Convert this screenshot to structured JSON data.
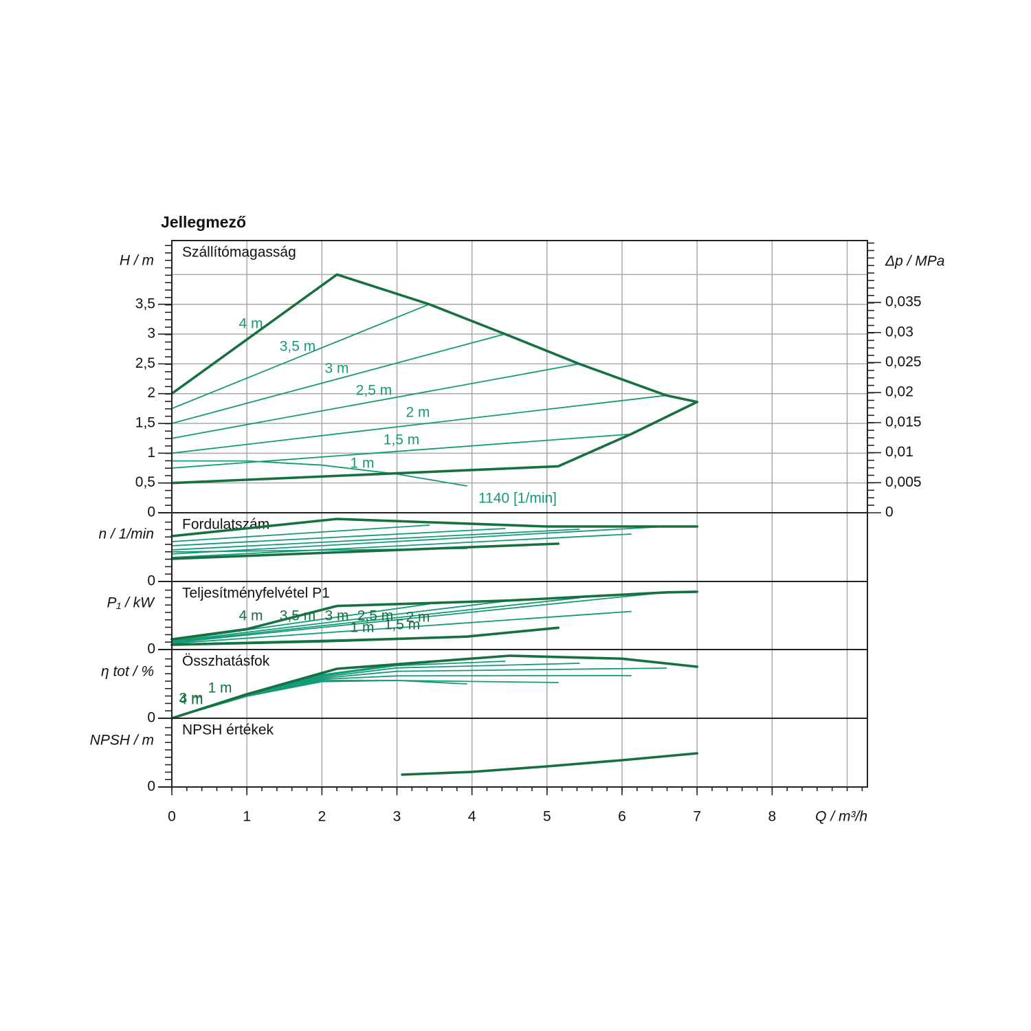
{
  "chart_data": {
    "type": "line",
    "title": "Jellegmező",
    "xlabel": "Q / m³/h",
    "xlim": [
      0,
      9.27
    ],
    "xticks": [
      0,
      1,
      2,
      3,
      4,
      5,
      6,
      7,
      8
    ],
    "xgrid": [
      0,
      1,
      2,
      3,
      4,
      5,
      6,
      7,
      8,
      9
    ],
    "panels": [
      {
        "title": "Szállítómagasság",
        "ylabel": "H / m",
        "ylim": [
          0,
          4.57
        ],
        "yticks": [
          0,
          {
            "value": 0.5,
            "label": "0,5"
          },
          1,
          {
            "value": 1.5,
            "label": "1,5"
          },
          2,
          {
            "value": 2.5,
            "label": "2,5"
          },
          3,
          {
            "value": 3.5,
            "label": "3,5"
          }
        ],
        "grid": [
          0.5,
          1,
          1.5,
          2,
          2.5,
          3,
          3.5,
          4
        ],
        "y2label": "Δp / MPa",
        "y2lim": [
          0,
          0.0453
        ],
        "y2ticks": [
          0,
          {
            "value": 0.005,
            "label": "0,005"
          },
          {
            "value": 0.01,
            "label": "0,01"
          },
          {
            "value": 0.015,
            "label": "0,015"
          },
          {
            "value": 0.02,
            "label": "0,02"
          },
          {
            "value": 0.025,
            "label": "0,025"
          },
          {
            "value": 0.03,
            "label": "0,03"
          },
          {
            "value": 0.035,
            "label": "0,035"
          }
        ],
        "envelope": [
          {
            "color": "#17703f",
            "x": [
              0,
              2.2,
              3.43,
              4.44,
              5.43,
              6.59,
              7.0
            ],
            "values": [
              2.0,
              4.0,
              3.5,
              3.0,
              2.5,
              1.97,
              1.86
            ]
          },
          {
            "color": "#17703f",
            "x": [
              0,
              5.15,
              6.12,
              7.0
            ],
            "values": [
              0.5,
              0.78,
              1.32,
              1.86
            ]
          }
        ],
        "series": [
          {
            "color": "#139b78",
            "x": [
              0,
              3.43
            ],
            "values": [
              1.75,
              3.5
            ]
          },
          {
            "color": "#139b78",
            "x": [
              0,
              4.44
            ],
            "values": [
              1.5,
              3.0
            ]
          },
          {
            "color": "#139b78",
            "x": [
              0,
              5.43
            ],
            "values": [
              1.25,
              2.5
            ]
          },
          {
            "color": "#139b78",
            "x": [
              0,
              6.59
            ],
            "values": [
              1.0,
              1.97
            ]
          },
          {
            "color": "#139b78",
            "x": [
              0,
              6.12
            ],
            "values": [
              0.75,
              1.32
            ]
          },
          {
            "color": "#139b78",
            "x": [
              0,
              1,
              2,
              3,
              3.93
            ],
            "values": [
              0.87,
              0.87,
              0.8,
              0.65,
              0.45
            ]
          }
        ],
        "annotations": [
          "4 m",
          "3,5 m",
          "3 m",
          "2,5 m",
          "2 m",
          "1,5 m",
          "1 m",
          "1140 [1/min]"
        ]
      },
      {
        "title": "Fordulatszám",
        "ylabel": "n / 1/min",
        "ylim": [
          0,
          3000
        ],
        "yticks": [
          0
        ],
        "envelope": [
          {
            "color": "#17703f",
            "x": [
              0,
              2.2,
              5,
              7
            ],
            "values": [
              1980,
              2730,
              2400,
              2400
            ]
          },
          {
            "color": "#17703f",
            "x": [
              0,
              5.15
            ],
            "values": [
              990,
              1650
            ]
          }
        ],
        "series": [
          {
            "color": "#139b78",
            "x": [
              0,
              3.43
            ],
            "values": [
              1740,
              2460
            ]
          },
          {
            "color": "#139b78",
            "x": [
              0,
              4.44
            ],
            "values": [
              1560,
              2310
            ]
          },
          {
            "color": "#139b78",
            "x": [
              0,
              5.43
            ],
            "values": [
              1380,
              2280
            ]
          },
          {
            "color": "#139b78",
            "x": [
              0,
              6.59
            ],
            "values": [
              1200,
              2400
            ]
          },
          {
            "color": "#139b78",
            "x": [
              0,
              6.12
            ],
            "values": [
              1050,
              2070
            ]
          },
          {
            "color": "#139b78",
            "x": [
              0,
              3.93
            ],
            "values": [
              1290,
              1440
            ]
          }
        ],
        "annotations": []
      },
      {
        "title": "Teljesítményfelvétel P1",
        "ylabel": "P₁ / kW",
        "ylim": [
          0,
          0.1
        ],
        "yticks": [
          0
        ],
        "envelope": [
          {
            "color": "#17703f",
            "x": [
              0,
              1,
              2.2,
              4.5,
              6.6,
              7
            ],
            "values": [
              0.015,
              0.03,
              0.064,
              0.072,
              0.084,
              0.085
            ]
          },
          {
            "color": "#17703f",
            "x": [
              0,
              2,
              3.93,
              5.15
            ],
            "values": [
              0.007,
              0.012,
              0.019,
              0.032
            ]
          }
        ],
        "series": [
          {
            "color": "#139b78",
            "x": [
              0,
              3.43
            ],
            "values": [
              0.013,
              0.067
            ]
          },
          {
            "color": "#139b78",
            "x": [
              0,
              4.44
            ],
            "values": [
              0.012,
              0.071
            ]
          },
          {
            "color": "#139b78",
            "x": [
              0,
              5.43
            ],
            "values": [
              0.011,
              0.076
            ]
          },
          {
            "color": "#139b78",
            "x": [
              0,
              6.59
            ],
            "values": [
              0.01,
              0.084
            ]
          },
          {
            "color": "#139b78",
            "x": [
              0,
              6.12
            ],
            "values": [
              0.009,
              0.056
            ]
          },
          {
            "color": "#139b78",
            "x": [
              0,
              3.93
            ],
            "values": [
              0.008,
              0.019
            ]
          }
        ],
        "annotations": [
          "4 m",
          "3,5 m",
          "3 m",
          "2,5 m",
          "2 m",
          "1 m",
          "1,5 m"
        ]
      },
      {
        "title": "Összhatásfok",
        "ylabel": "η tot / %",
        "ylim": [
          0,
          30
        ],
        "yticks": [
          0
        ],
        "envelope": [
          {
            "color": "#17703f",
            "x": [
              0,
              1,
              2.2,
              4.5,
              6,
              7
            ],
            "values": [
              0,
              10.5,
              21.6,
              27.3,
              26,
              22.5
            ]
          }
        ],
        "series": [
          {
            "color": "#139b78",
            "x": [
              0,
              1,
              2,
              3,
              3.43
            ],
            "values": [
              0,
              10.2,
              19,
              23.5,
              24.3
            ]
          },
          {
            "color": "#139b78",
            "x": [
              0,
              1,
              2,
              3,
              4.44
            ],
            "values": [
              0,
              10.1,
              18.5,
              23,
              24.9
            ]
          },
          {
            "color": "#139b78",
            "x": [
              0,
              1,
              2,
              3,
              5.43
            ],
            "values": [
              0,
              10,
              18,
              22,
              24
            ]
          },
          {
            "color": "#139b78",
            "x": [
              0,
              1,
              2,
              3,
              6.59
            ],
            "values": [
              0,
              9.9,
              17.5,
              20.5,
              21.9
            ]
          },
          {
            "color": "#139b78",
            "x": [
              0,
              1,
              2,
              3,
              6.12
            ],
            "values": [
              0,
              9.8,
              17,
              18.5,
              18.6
            ]
          },
          {
            "color": "#139b78",
            "x": [
              0,
              1,
              2,
              3,
              3.93
            ],
            "values": [
              0,
              9.7,
              16.5,
              16.5,
              15
            ]
          },
          {
            "color": "#139b78",
            "x": [
              0,
              1,
              2,
              3,
              5.15
            ],
            "values": [
              0,
              9.6,
              16,
              16.5,
              15.6
            ]
          }
        ],
        "annotations": [
          "4 m",
          "3 m",
          "1 m"
        ]
      },
      {
        "title": "NPSH értékek",
        "ylabel": "NPSH / m",
        "ylim": [
          0,
          3
        ],
        "yticks": [
          0
        ],
        "envelope": [
          {
            "color": "#17703f",
            "x": [
              3.07,
              4,
              5,
              6,
              7
            ],
            "values": [
              0.54,
              0.66,
              0.9,
              1.17,
              1.47
            ]
          }
        ],
        "series": [],
        "annotations": []
      }
    ]
  }
}
